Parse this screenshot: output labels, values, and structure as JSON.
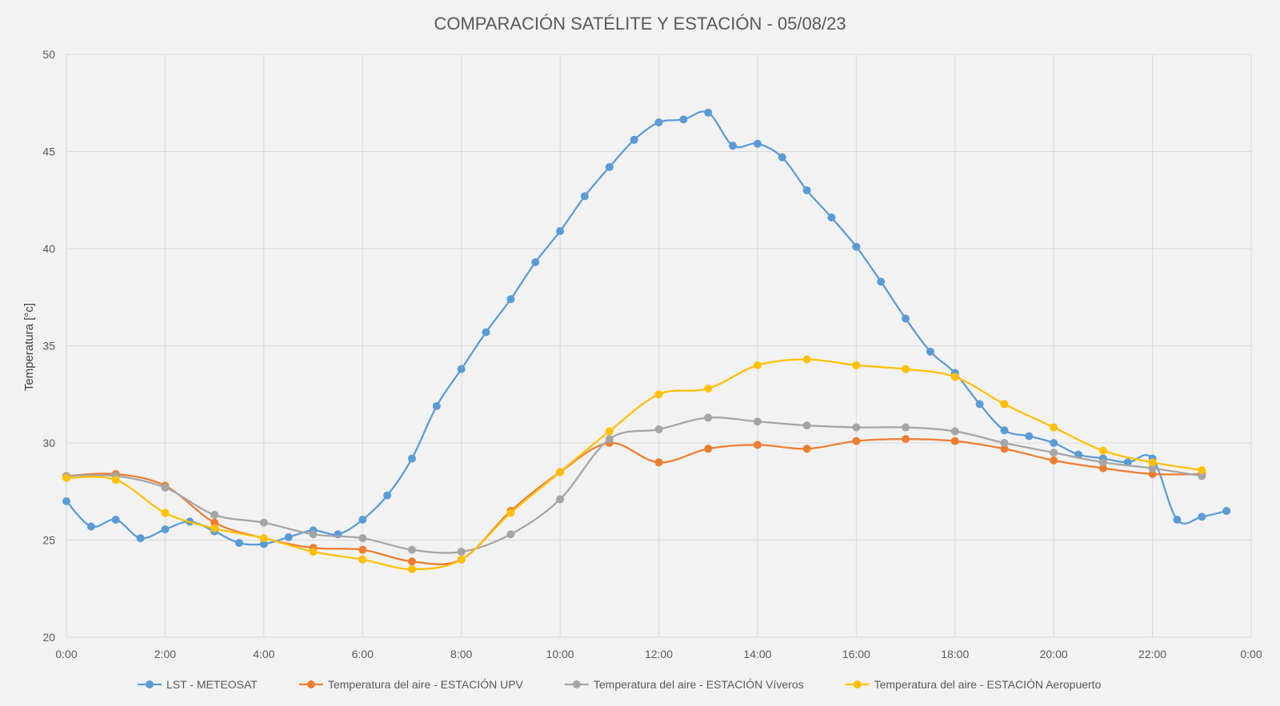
{
  "chart_data": {
    "type": "line",
    "title": "COMPARACIÓN SATÉLITE Y ESTACIÓN - 05/08/23",
    "xlabel": "",
    "ylabel": "Temperatura [°c]",
    "ylim": [
      20,
      50
    ],
    "yticks": [
      20,
      25,
      30,
      35,
      40,
      45,
      50
    ],
    "xlim": [
      0,
      24
    ],
    "xticks": [
      0,
      2,
      4,
      6,
      8,
      10,
      12,
      14,
      16,
      18,
      20,
      22,
      24
    ],
    "xtick_labels": [
      "0:00",
      "2:00",
      "4:00",
      "6:00",
      "8:00",
      "10:00",
      "12:00",
      "14:00",
      "16:00",
      "18:00",
      "20:00",
      "22:00",
      "0:00"
    ],
    "grid": true,
    "legend_position": "bottom",
    "series": [
      {
        "name": "LST - METEOSAT",
        "color": "#5b9bd5",
        "x": [
          0,
          0.5,
          1,
          1.5,
          2,
          2.5,
          3,
          3.5,
          4,
          4.5,
          5,
          5.5,
          6,
          6.5,
          7,
          7.5,
          8,
          8.5,
          9,
          9.5,
          10,
          10.5,
          11,
          11.5,
          12,
          12.5,
          13,
          13.5,
          14,
          14.5,
          15,
          15.5,
          16,
          16.5,
          17,
          17.5,
          18,
          18.5,
          19,
          19.5,
          20,
          20.5,
          21,
          21.5,
          22,
          22.5,
          23,
          23.5
        ],
        "values": [
          27.0,
          25.7,
          26.05,
          25.1,
          25.55,
          25.95,
          25.45,
          24.85,
          24.8,
          25.15,
          25.5,
          25.3,
          26.05,
          27.3,
          29.2,
          31.9,
          33.8,
          35.7,
          37.4,
          39.3,
          40.9,
          42.7,
          44.2,
          45.6,
          46.5,
          46.65,
          47.0,
          45.3,
          45.4,
          44.7,
          43.0,
          41.6,
          40.1,
          38.3,
          36.4,
          34.7,
          33.6,
          32.0,
          30.65,
          30.35,
          30.0,
          29.4,
          29.2,
          29.0,
          29.2,
          26.05,
          26.2,
          26.5
        ]
      },
      {
        "name": "Temperatura del aire - ESTACIÓN UPV",
        "color": "#ed7d31",
        "x": [
          0,
          1,
          2,
          3,
          4,
          5,
          6,
          7,
          8,
          9,
          10,
          11,
          12,
          13,
          14,
          15,
          16,
          17,
          18,
          19,
          20,
          21,
          22,
          23
        ],
        "values": [
          28.3,
          28.4,
          27.8,
          25.9,
          25.1,
          24.6,
          24.5,
          23.9,
          24.0,
          26.5,
          28.5,
          30.0,
          29.0,
          29.7,
          29.9,
          29.7,
          30.1,
          30.2,
          30.1,
          29.7,
          29.1,
          28.7,
          28.4,
          28.4
        ]
      },
      {
        "name": "Temperatura del aire - ESTACIÓN Víveros",
        "color": "#a5a5a5",
        "x": [
          0,
          1,
          2,
          3,
          4,
          5,
          6,
          7,
          8,
          9,
          10,
          11,
          12,
          13,
          14,
          15,
          16,
          17,
          18,
          19,
          20,
          21,
          22,
          23
        ],
        "values": [
          28.3,
          28.3,
          27.7,
          26.3,
          25.9,
          25.3,
          25.1,
          24.5,
          24.4,
          25.3,
          27.1,
          30.2,
          30.7,
          31.3,
          31.1,
          30.9,
          30.8,
          30.8,
          30.6,
          30.0,
          29.5,
          29.0,
          28.7,
          28.3
        ]
      },
      {
        "name": "Temperatura del aire - ESTACIÓN Aeropuerto",
        "color": "#ffc000",
        "x": [
          0,
          1,
          2,
          3,
          4,
          5,
          6,
          7,
          8,
          9,
          10,
          11,
          12,
          13,
          14,
          15,
          16,
          17,
          18,
          19,
          20,
          21,
          22,
          23
        ],
        "values": [
          28.2,
          28.1,
          26.4,
          25.6,
          25.1,
          24.4,
          24.0,
          23.5,
          24.0,
          26.4,
          28.5,
          30.6,
          32.5,
          32.8,
          34.0,
          34.3,
          34.0,
          33.8,
          33.4,
          32.0,
          30.8,
          29.6,
          29.0,
          28.6
        ]
      }
    ]
  }
}
